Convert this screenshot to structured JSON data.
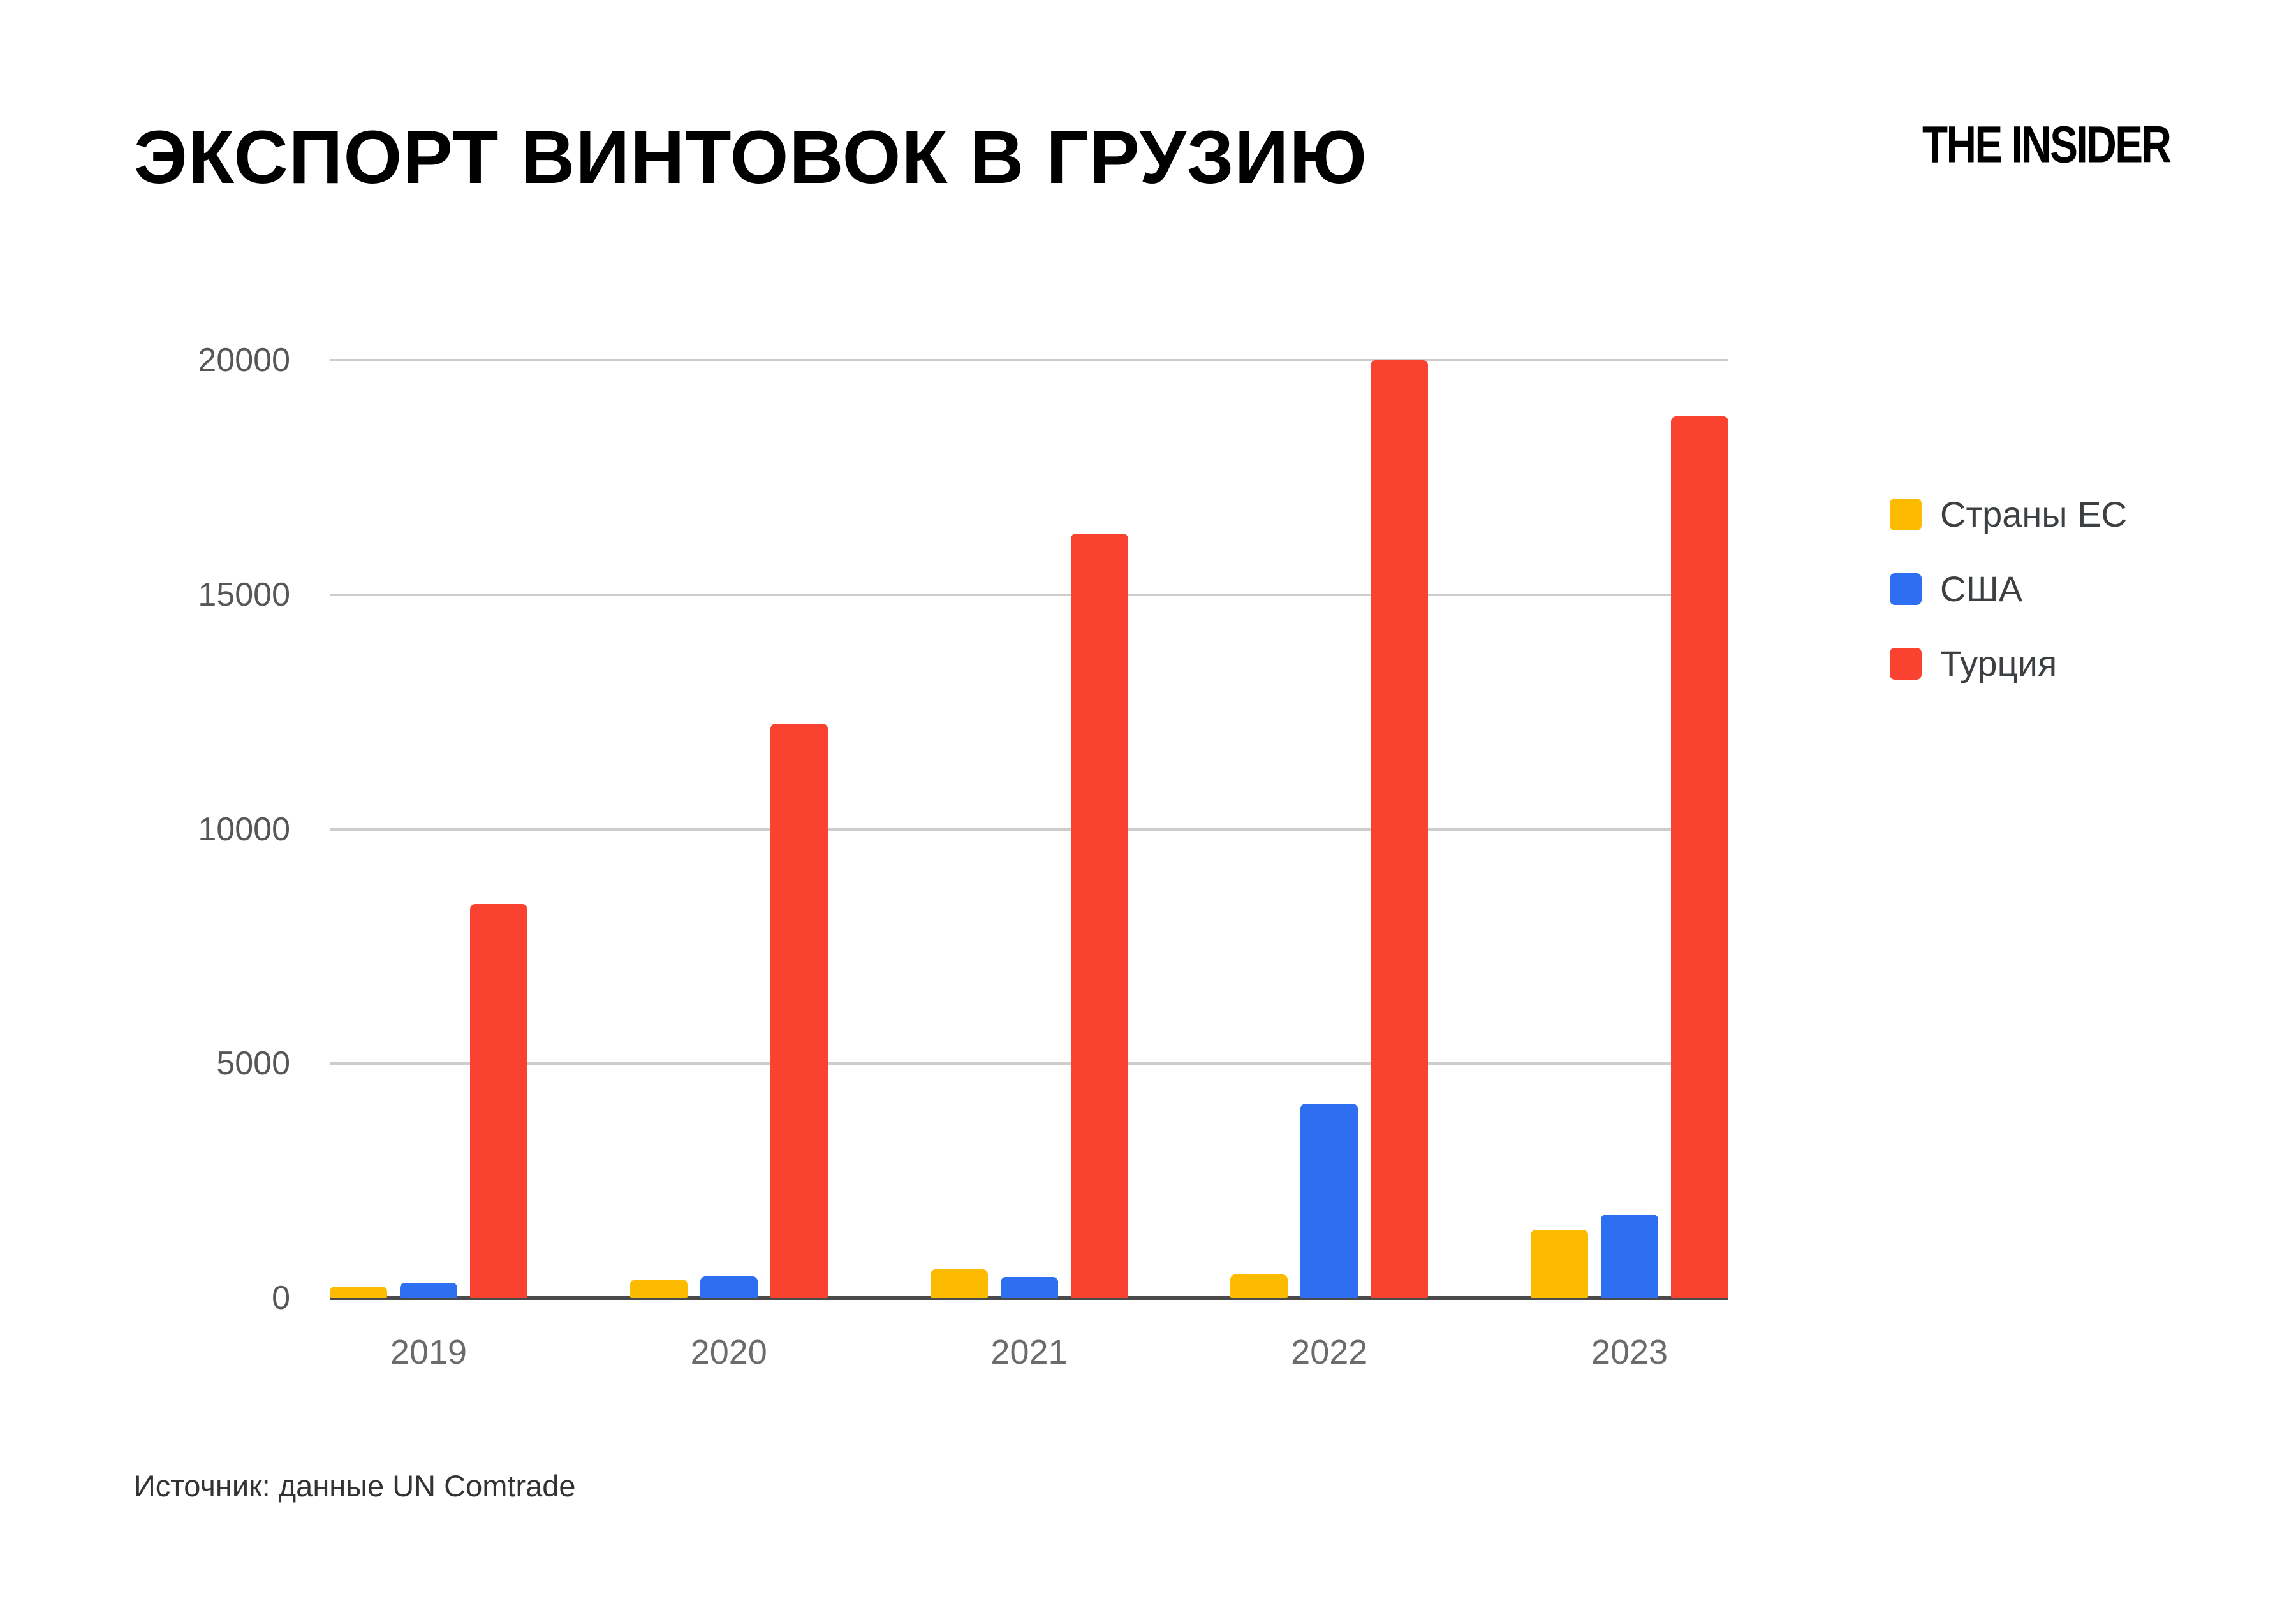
{
  "header": {
    "title": "ЭКСПОРТ ВИНТОВОК В ГРУЗИЮ",
    "brand": "THE INSIDER"
  },
  "footer": {
    "source": "Источник: данные UN Comtrade"
  },
  "chart_data": {
    "type": "bar",
    "title": "ЭКСПОРТ ВИНТОВОК В ГРУЗИЮ",
    "categories": [
      "2019",
      "2020",
      "2021",
      "2022",
      "2023"
    ],
    "series": [
      {
        "name": "Страны ЕС",
        "color": "#FCBB00",
        "values": [
          250,
          400,
          610,
          500,
          1450
        ]
      },
      {
        "name": "США",
        "color": "#2D6FF0",
        "values": [
          330,
          460,
          450,
          4150,
          1780
        ]
      },
      {
        "name": "Турция",
        "color": "#FA4231",
        "values": [
          8400,
          12250,
          16300,
          20000,
          18800
        ]
      }
    ],
    "ylim": [
      0,
      20000
    ],
    "yticks": [
      0,
      5000,
      10000,
      15000,
      20000
    ],
    "ytick_labels": [
      "0",
      "5000",
      "10000",
      "15000",
      "20000"
    ],
    "grid": true,
    "legend_position": "right",
    "colors": {
      "gridline": "#cdcdcd",
      "axis_baseline": "#4a4a4a",
      "tick_label": "#575757",
      "category_label": "#6b6b6b",
      "legend_text": "#3c4043",
      "title_text": "#000000"
    },
    "source": "Источник: данные UN Comtrade"
  }
}
